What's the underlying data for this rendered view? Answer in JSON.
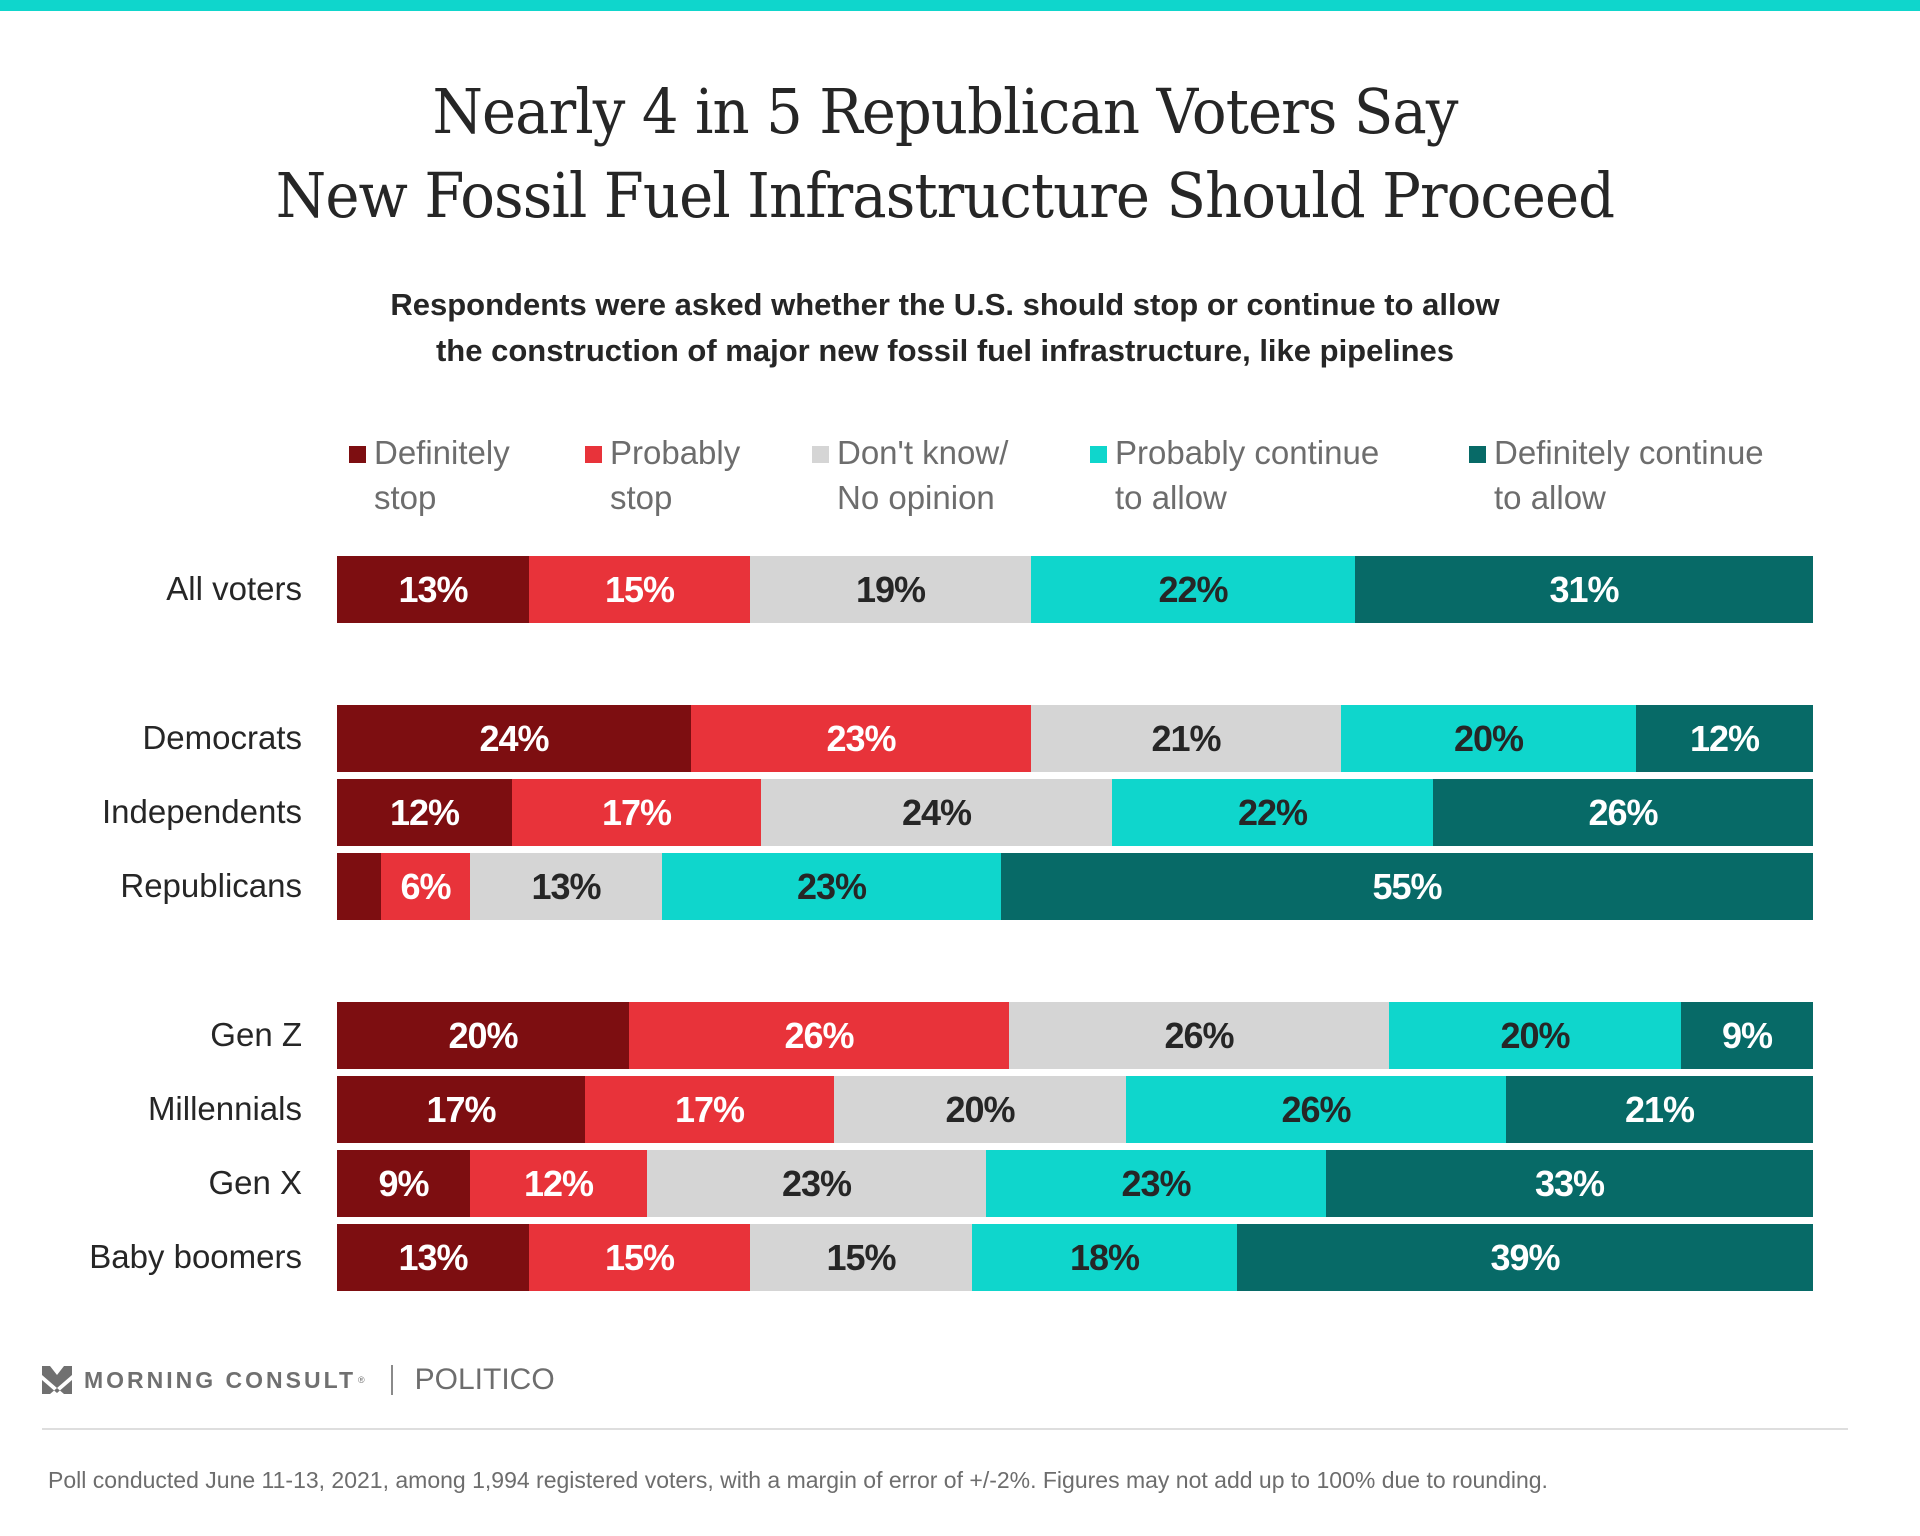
{
  "colors": {
    "top_bar": "#0fd6cc",
    "definitely_stop": "#7d0e11",
    "probably_stop": "#e8333a",
    "dont_know": "#d5d5d5",
    "probably_continue": "#0fd6cc",
    "definitely_continue": "#076a67",
    "text_dark": "#262626",
    "text_light": "#ffffff"
  },
  "header": {
    "title_lines": [
      "Nearly 4 in 5 Republican Voters Say",
      "New Fossil Fuel Infrastructure Should Proceed"
    ],
    "subtitle_lines": [
      "Respondents were asked whether the U.S. should stop or continue to allow",
      "the construction of major new fossil fuel infrastructure, like pipelines"
    ]
  },
  "chart_data": {
    "type": "bar",
    "orientation": "horizontal",
    "stacked": true,
    "title": "Nearly 4 in 5 Republican Voters Say New Fossil Fuel Infrastructure Should Proceed",
    "subtitle": "Respondents were asked whether the U.S. should stop or continue to allow the construction of major new fossil fuel infrastructure, like pipelines",
    "xlabel": "",
    "ylabel": "",
    "xlim": [
      0,
      100
    ],
    "grid": false,
    "legend_position": "top",
    "unit": "%",
    "legend": [
      {
        "key": "definitely_stop",
        "lines": [
          "Definitely",
          "stop"
        ]
      },
      {
        "key": "probably_stop",
        "lines": [
          "Probably",
          "stop"
        ]
      },
      {
        "key": "dont_know",
        "lines": [
          "Don't know/",
          "No opinion"
        ]
      },
      {
        "key": "probably_continue",
        "lines": [
          "Probably continue",
          "to allow"
        ]
      },
      {
        "key": "definitely_continue",
        "lines": [
          "Definitely continue",
          "to allow"
        ]
      }
    ],
    "categories": [
      "All voters",
      "Democrats",
      "Independents",
      "Republicans",
      "Gen Z",
      "Millennials",
      "Gen X",
      "Baby boomers"
    ],
    "groups": [
      [
        "All voters"
      ],
      [
        "Democrats",
        "Independents",
        "Republicans"
      ],
      [
        "Gen Z",
        "Millennials",
        "Gen X",
        "Baby boomers"
      ]
    ],
    "series": [
      {
        "name": "Definitely stop",
        "key": "definitely_stop",
        "values": [
          13,
          24,
          12,
          3,
          20,
          17,
          9,
          13
        ],
        "labels": [
          "13%",
          "24%",
          "12%",
          "",
          "20%",
          "17%",
          "9%",
          "13%"
        ]
      },
      {
        "name": "Probably stop",
        "key": "probably_stop",
        "values": [
          15,
          23,
          17,
          6,
          26,
          17,
          12,
          15
        ],
        "labels": [
          "15%",
          "23%",
          "17%",
          "6%",
          "26%",
          "17%",
          "12%",
          "15%"
        ]
      },
      {
        "name": "Don't know/No opinion",
        "key": "dont_know",
        "values": [
          19,
          21,
          24,
          13,
          26,
          20,
          23,
          15
        ],
        "labels": [
          "19%",
          "21%",
          "24%",
          "13%",
          "26%",
          "20%",
          "23%",
          "15%"
        ]
      },
      {
        "name": "Probably continue to allow",
        "key": "probably_continue",
        "values": [
          22,
          20,
          22,
          23,
          20,
          26,
          23,
          18
        ],
        "labels": [
          "22%",
          "20%",
          "22%",
          "23%",
          "20%",
          "26%",
          "23%",
          "18%"
        ]
      },
      {
        "name": "Definitely continue to allow",
        "key": "definitely_continue",
        "values": [
          31,
          12,
          26,
          55,
          9,
          21,
          33,
          39
        ],
        "labels": [
          "31%",
          "12%",
          "26%",
          "55%",
          "9%",
          "21%",
          "33%",
          "39%"
        ]
      }
    ]
  },
  "branding": {
    "morning_consult": "MORNING CONSULT",
    "registered_mark": "®",
    "politico": "POLITICO"
  },
  "footnote": "Poll conducted June 11-13, 2021, among 1,994 registered voters, with a margin of error of +/-2%. Figures may not add up to 100% due to rounding."
}
